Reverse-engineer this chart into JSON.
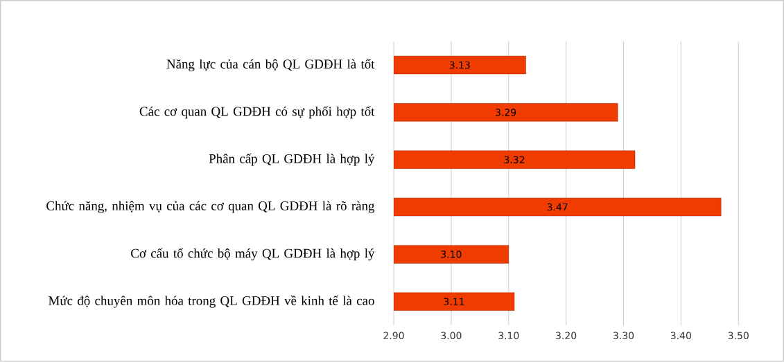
{
  "chart_data": {
    "type": "bar",
    "orientation": "horizontal",
    "categories": [
      "Năng lực của cán bộ QL GDĐH là tốt",
      "Các cơ quan QL GDĐH có sự phối hợp tốt",
      "Phân cấp QL GDĐH là hợp lý",
      "Chức năng, nhiệm vụ của các cơ quan QL GDĐH là rõ ràng",
      "Cơ cấu tổ chức bộ máy QL GDĐH là hợp lý",
      "Mức độ chuyên môn hóa trong QL GDĐH về kinh tế là cao"
    ],
    "values": [
      3.13,
      3.29,
      3.32,
      3.47,
      3.1,
      3.11
    ],
    "value_labels": [
      "3.13",
      "3.29",
      "3.32",
      "3.47",
      "3.10",
      "3.11"
    ],
    "color": "#f03c00",
    "xlim": [
      2.9,
      3.5
    ],
    "xticks": [
      {
        "value": 2.9,
        "label": "2.90"
      },
      {
        "value": 3.0,
        "label": "3.00"
      },
      {
        "value": 3.1,
        "label": "3.10"
      },
      {
        "value": 3.2,
        "label": "3.20"
      },
      {
        "value": 3.3,
        "label": "3.30"
      },
      {
        "value": 3.4,
        "label": "3.40"
      },
      {
        "value": 3.5,
        "label": "3.50"
      }
    ],
    "grid": "x"
  }
}
